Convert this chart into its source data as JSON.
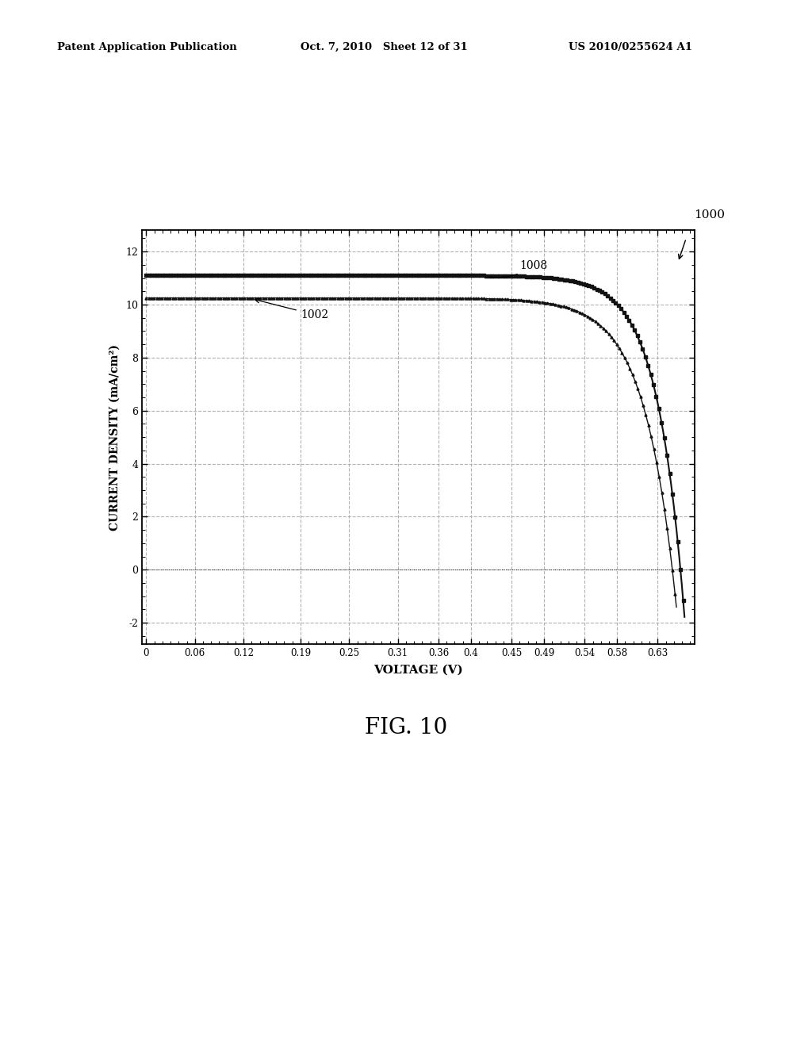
{
  "header_left": "Patent Application Publication",
  "header_mid": "Oct. 7, 2010   Sheet 12 of 31",
  "header_right": "US 2010/0255624 A1",
  "figure_label": "FIG. 10",
  "figure_number": "1000",
  "curve1_label": "1002",
  "curve2_label": "1008",
  "xlabel": "VOLTAGE (V)",
  "ylabel": "CURRENT DENSITY (mA/cm²)",
  "xticks": [
    0,
    0.06,
    0.12,
    0.19,
    0.25,
    0.31,
    0.36,
    0.4,
    0.45,
    0.49,
    0.54,
    0.58,
    0.63
  ],
  "yticks": [
    -2,
    0,
    2,
    4,
    6,
    8,
    10,
    12
  ],
  "ylim": [
    -2.8,
    12.8
  ],
  "xlim": [
    -0.005,
    0.675
  ],
  "background_color": "#ffffff",
  "curve_color": "#111111",
  "grid_color": "#aaaaaa",
  "curve1_Isc": 10.25,
  "curve1_Voc": 0.648,
  "curve1_n": 1.5,
  "curve2_Isc": 11.1,
  "curve2_Voc": 0.658,
  "curve2_n": 1.3
}
